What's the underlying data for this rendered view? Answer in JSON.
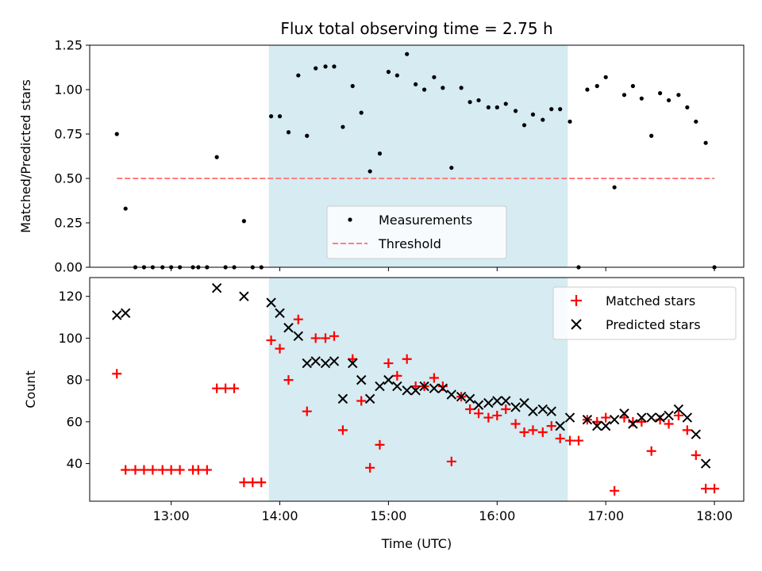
{
  "figure_title": "Flux total observing time = 2.75 h",
  "xlabel": "Time (UTC)",
  "x_tick_labels": [
    "13:00",
    "14:00",
    "15:00",
    "16:00",
    "17:00",
    "18:00"
  ],
  "colors": {
    "measurements": "#000000",
    "threshold": "#ff7f7f",
    "matched": "#ff0000",
    "predicted": "#000000",
    "observing_span": "#add8e6"
  },
  "chart_data": [
    {
      "type": "scatter",
      "title": "Flux total observing time = 2.75 h",
      "ylabel": "Matched/Predicted stars",
      "xlabel": "Time (UTC)",
      "x_unit": "hours UTC",
      "xlim": [
        12.25,
        18.27
      ],
      "ylim": [
        0,
        1.25
      ],
      "yticks": [
        "0.00",
        "0.25",
        "0.50",
        "0.75",
        "1.00",
        "1.25"
      ],
      "shaded_span": [
        13.9,
        16.65
      ],
      "legend": {
        "placement": "lower-center",
        "entries": [
          "Measurements",
          "Threshold"
        ]
      },
      "threshold": {
        "name": "Threshold",
        "value": 0.5,
        "x_range": [
          12.5,
          18.0
        ],
        "style": "dashed"
      },
      "series": [
        {
          "name": "Measurements",
          "marker": "dot",
          "x": [
            12.5,
            12.58,
            12.67,
            12.75,
            12.83,
            12.92,
            13.0,
            13.08,
            13.2,
            13.25,
            13.33,
            13.42,
            13.5,
            13.58,
            13.67,
            13.75,
            13.83,
            13.92,
            14.0,
            14.08,
            14.17,
            14.25,
            14.33,
            14.42,
            14.5,
            14.58,
            14.67,
            14.75,
            14.83,
            14.92,
            15.0,
            15.08,
            15.17,
            15.25,
            15.33,
            15.42,
            15.5,
            15.58,
            15.67,
            15.75,
            15.83,
            15.92,
            16.0,
            16.08,
            16.17,
            16.25,
            16.33,
            16.42,
            16.5,
            16.58,
            16.67,
            16.75,
            16.83,
            16.92,
            17.0,
            17.08,
            17.17,
            17.25,
            17.33,
            17.42,
            17.5,
            17.58,
            17.67,
            17.75,
            17.83,
            17.92,
            18.0
          ],
          "y": [
            0.75,
            0.33,
            0.0,
            0.0,
            0.0,
            0.0,
            0.0,
            0.0,
            0.0,
            0.0,
            0.0,
            0.62,
            0.0,
            0.0,
            0.26,
            0.0,
            0.0,
            0.85,
            0.85,
            0.76,
            1.08,
            0.74,
            1.12,
            1.13,
            1.13,
            0.79,
            1.02,
            0.87,
            0.54,
            0.64,
            1.1,
            1.08,
            1.2,
            1.03,
            1.0,
            1.07,
            1.01,
            0.56,
            1.01,
            0.93,
            0.94,
            0.9,
            0.9,
            0.92,
            0.88,
            0.8,
            0.86,
            0.83,
            0.89,
            0.89,
            0.82,
            0.0,
            1.0,
            1.02,
            1.07,
            0.45,
            0.97,
            1.02,
            0.95,
            0.74,
            0.98,
            0.94,
            0.97,
            0.9,
            0.82,
            0.7,
            0.0
          ]
        }
      ]
    },
    {
      "type": "scatter",
      "ylabel": "Count",
      "xlabel": "Time (UTC)",
      "x_unit": "hours UTC",
      "xlim": [
        12.25,
        18.27
      ],
      "ylim": [
        22,
        129
      ],
      "yticks": [
        "40",
        "60",
        "80",
        "100",
        "120"
      ],
      "shaded_span": [
        13.9,
        16.65
      ],
      "legend": {
        "placement": "upper-right",
        "entries": [
          "Matched stars",
          "Predicted stars"
        ]
      },
      "series": [
        {
          "name": "Matched stars",
          "marker": "plus",
          "x": [
            12.5,
            12.58,
            12.67,
            12.75,
            12.83,
            12.92,
            13.0,
            13.08,
            13.2,
            13.25,
            13.33,
            13.42,
            13.5,
            13.58,
            13.67,
            13.75,
            13.83,
            13.92,
            14.0,
            14.08,
            14.17,
            14.25,
            14.33,
            14.42,
            14.5,
            14.58,
            14.67,
            14.75,
            14.83,
            14.92,
            15.0,
            15.08,
            15.17,
            15.25,
            15.33,
            15.42,
            15.5,
            15.58,
            15.67,
            15.75,
            15.83,
            15.92,
            16.0,
            16.08,
            16.17,
            16.25,
            16.33,
            16.42,
            16.5,
            16.58,
            16.67,
            16.75,
            16.83,
            16.92,
            17.0,
            17.08,
            17.17,
            17.25,
            17.33,
            17.42,
            17.5,
            17.58,
            17.67,
            17.75,
            17.83,
            17.92,
            18.0
          ],
          "y": [
            83,
            37,
            37,
            37,
            37,
            37,
            37,
            37,
            37,
            37,
            37,
            76,
            76,
            76,
            31,
            31,
            31,
            99,
            95,
            80,
            109,
            65,
            100,
            100,
            101,
            56,
            90,
            70,
            38,
            49,
            88,
            82,
            90,
            77,
            77,
            81,
            77,
            41,
            72,
            66,
            64,
            62,
            63,
            66,
            59,
            55,
            56,
            55,
            58,
            52,
            51,
            51,
            61,
            60,
            62,
            27,
            62,
            60,
            60,
            46,
            61,
            59,
            63,
            56,
            44,
            28,
            28
          ]
        },
        {
          "name": "Predicted stars",
          "marker": "x",
          "x": [
            12.5,
            12.58,
            13.42,
            13.67,
            13.92,
            14.0,
            14.08,
            14.17,
            14.25,
            14.33,
            14.42,
            14.5,
            14.58,
            14.67,
            14.75,
            14.83,
            14.92,
            15.0,
            15.08,
            15.17,
            15.25,
            15.33,
            15.42,
            15.5,
            15.58,
            15.67,
            15.75,
            15.83,
            15.92,
            16.0,
            16.08,
            16.17,
            16.25,
            16.33,
            16.42,
            16.5,
            16.58,
            16.67,
            16.83,
            16.92,
            17.0,
            17.08,
            17.17,
            17.25,
            17.33,
            17.42,
            17.5,
            17.58,
            17.67,
            17.75,
            17.83,
            17.92
          ],
          "y": [
            111,
            112,
            124,
            120,
            117,
            112,
            105,
            101,
            88,
            89,
            88,
            89,
            71,
            88,
            80,
            71,
            77,
            80,
            77,
            75,
            75,
            77,
            76,
            76,
            73,
            72,
            71,
            68,
            69,
            70,
            70,
            67,
            69,
            65,
            66,
            65,
            58,
            62,
            61,
            58,
            58,
            61,
            64,
            59,
            62,
            62,
            62,
            63,
            66,
            62,
            54,
            40
          ]
        }
      ]
    }
  ]
}
